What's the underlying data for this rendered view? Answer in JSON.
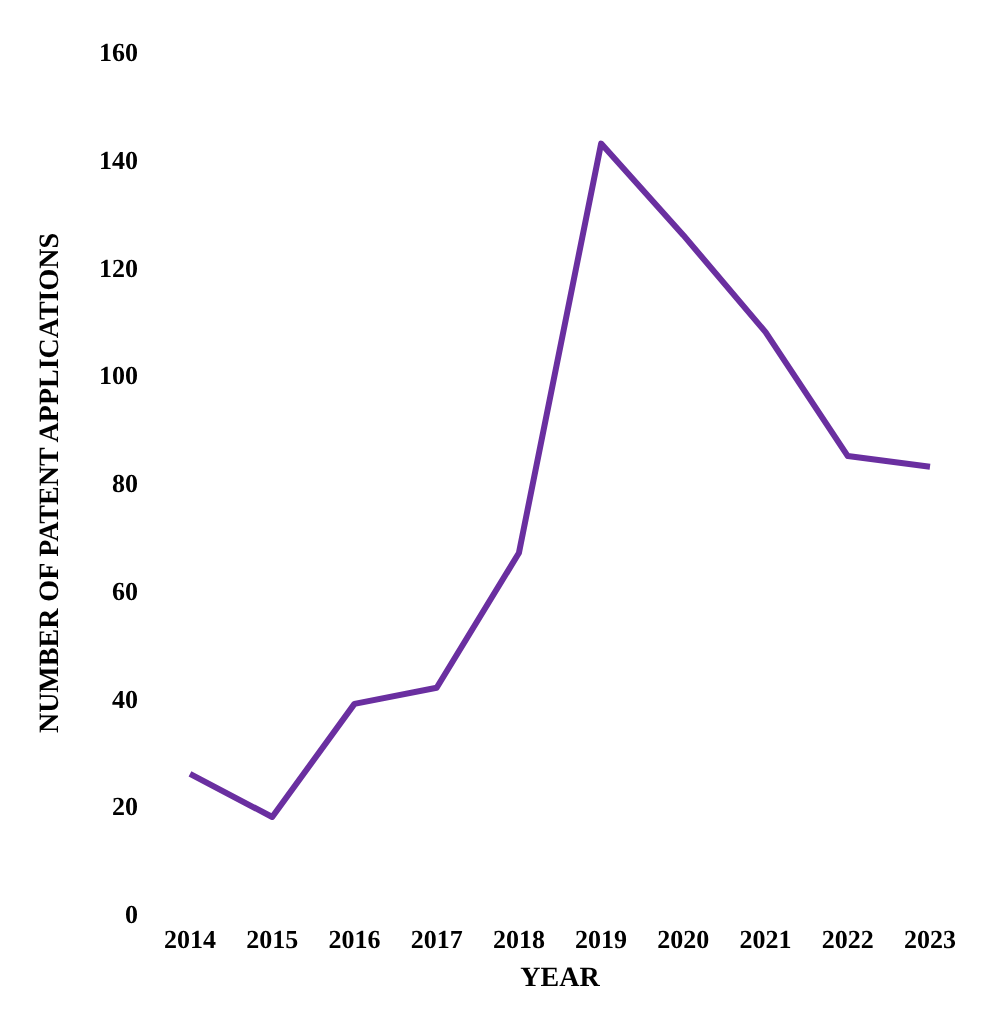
{
  "chart_data": {
    "type": "line",
    "xlabel": "YEAR",
    "ylabel": "NUMBER OF PATENT APPLICATIONS",
    "categories": [
      "2014",
      "2015",
      "2016",
      "2017",
      "2018",
      "2019",
      "2020",
      "2021",
      "2022",
      "2023"
    ],
    "series": [
      {
        "color": "#6a2fa0",
        "values": [
          26,
          18,
          39,
          42,
          67,
          143,
          126,
          108,
          85,
          83
        ]
      }
    ],
    "ylim": [
      0,
      160
    ],
    "yticks": [
      0,
      20,
      40,
      60,
      80,
      100,
      120,
      140,
      160
    ],
    "grid": false,
    "legend": false,
    "marker": "none",
    "line_style": "solid"
  }
}
